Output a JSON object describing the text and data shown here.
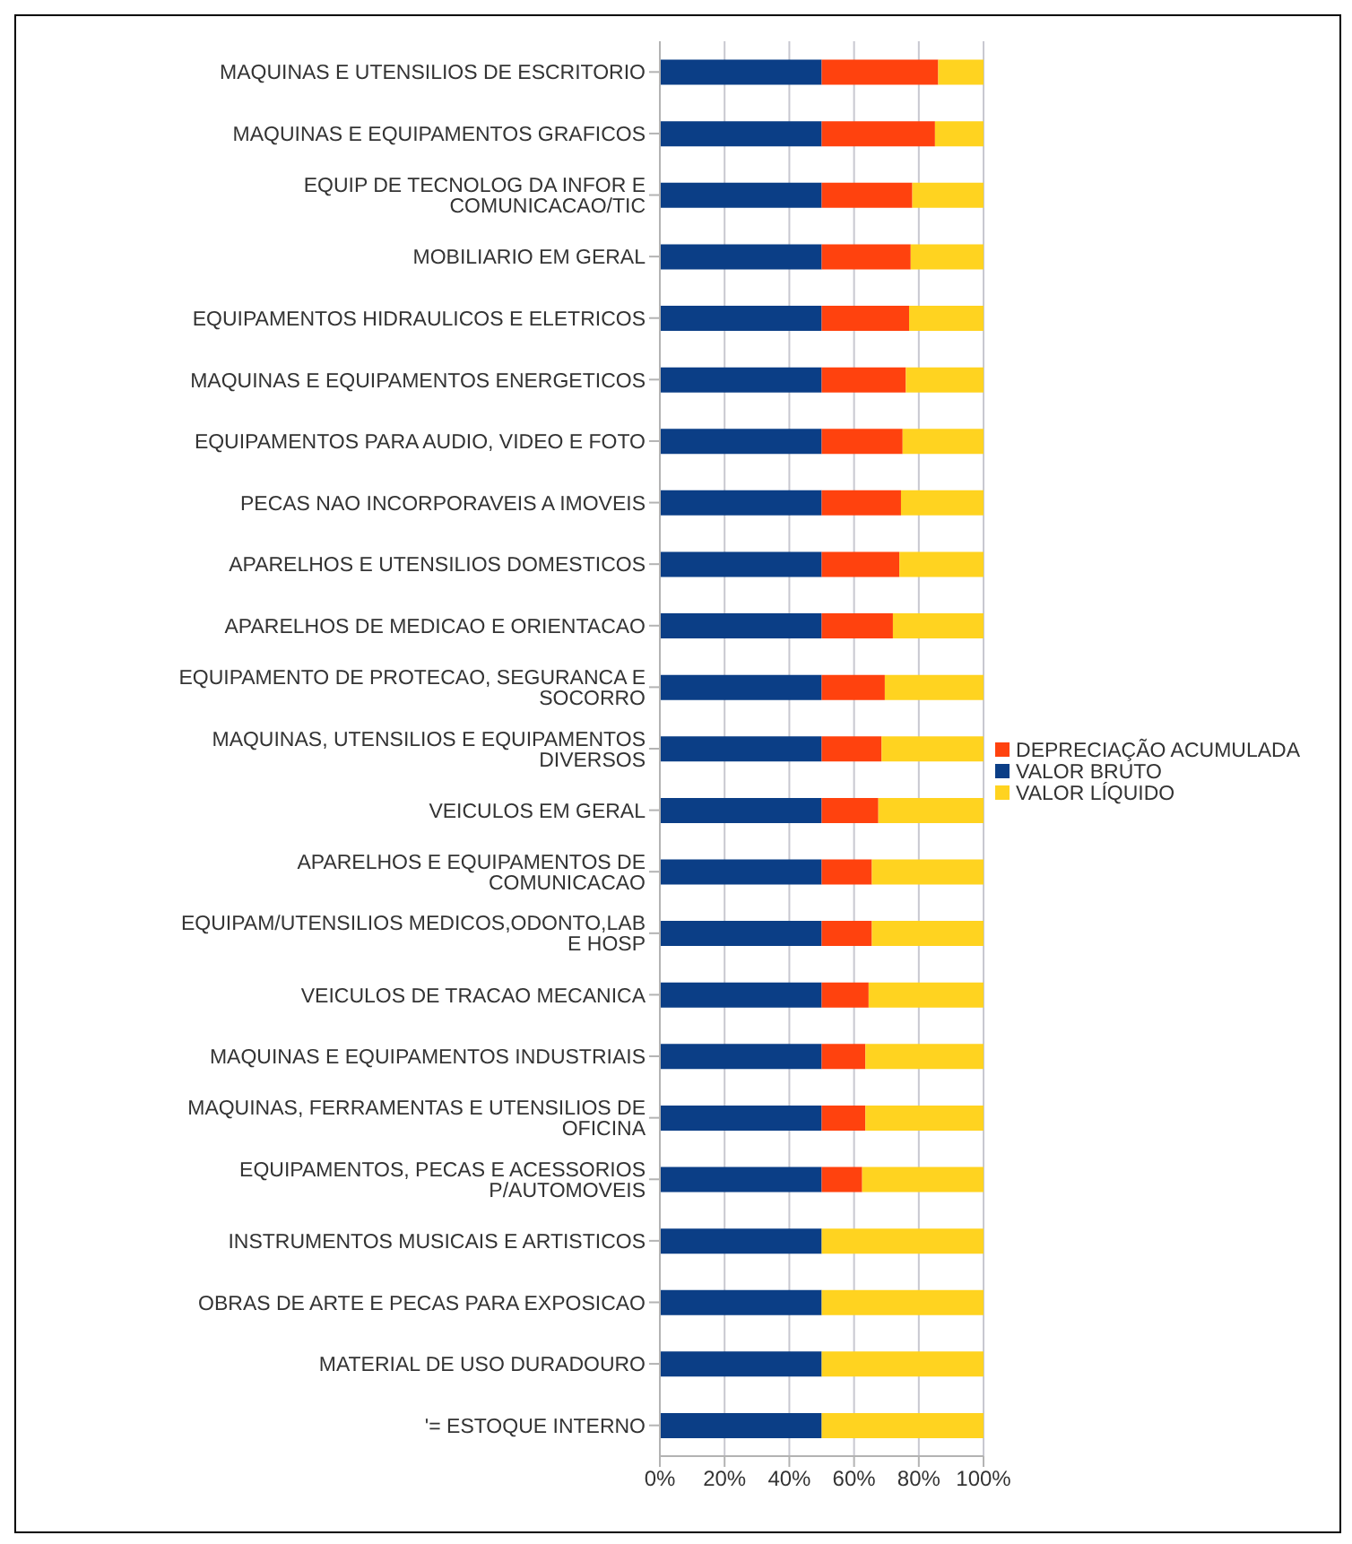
{
  "chart_data": {
    "type": "bar",
    "orientation": "horizontal",
    "stacked": true,
    "categories": [
      "MAQUINAS E UTENSILIOS DE ESCRITORIO",
      "MAQUINAS E EQUIPAMENTOS GRAFICOS",
      "EQUIP DE TECNOLOG DA INFOR E COMUNICACAO/TIC",
      "MOBILIARIO EM GERAL",
      "EQUIPAMENTOS HIDRAULICOS E ELETRICOS",
      "MAQUINAS E EQUIPAMENTOS ENERGETICOS",
      "EQUIPAMENTOS PARA AUDIO, VIDEO E FOTO",
      "PECAS NAO INCORPORAVEIS A IMOVEIS",
      "APARELHOS E UTENSILIOS DOMESTICOS",
      "APARELHOS DE MEDICAO E ORIENTACAO",
      "EQUIPAMENTO DE PROTECAO, SEGURANCA E SOCORRO",
      "MAQUINAS, UTENSILIOS E EQUIPAMENTOS  DIVERSOS",
      "VEICULOS EM GERAL",
      "APARELHOS E EQUIPAMENTOS DE COMUNICACAO",
      "EQUIPAM/UTENSILIOS MEDICOS,ODONTO,LAB E HOSP",
      "VEICULOS DE TRACAO MECANICA",
      "MAQUINAS E EQUIPAMENTOS INDUSTRIAIS",
      "MAQUINAS, FERRAMENTAS E UTENSILIOS DE OFICINA",
      "EQUIPAMENTOS, PECAS E ACESSORIOS P/AUTOMOVEIS",
      "INSTRUMENTOS MUSICAIS E ARTISTICOS",
      "OBRAS DE ARTE E PECAS PARA EXPOSICAO",
      "MATERIAL DE USO DURADOURO",
      "'= ESTOQUE INTERNO"
    ],
    "series": [
      {
        "name": "VALOR BRUTO",
        "color": "#0b3e86",
        "values": [
          50,
          50,
          50,
          50,
          50,
          50,
          50,
          50,
          50,
          50,
          50,
          50,
          50,
          50,
          50,
          50,
          50,
          50,
          50,
          50,
          50,
          50,
          50
        ]
      },
      {
        "name": "DEPRECIAÇÃO ACUMULADA",
        "color": "#ff420e",
        "values": [
          36,
          35,
          28,
          27.5,
          27,
          26,
          25,
          24.5,
          24,
          22,
          19.5,
          18.5,
          17.5,
          15.5,
          15.5,
          14.5,
          13.5,
          13.5,
          12.5,
          0,
          0,
          0,
          0
        ]
      },
      {
        "name": "VALOR LÍQUIDO",
        "color": "#ffd320",
        "values": [
          14,
          15,
          22,
          22.5,
          23,
          24,
          25,
          25.5,
          26,
          28,
          30.5,
          31.5,
          32.5,
          34.5,
          34.5,
          35.5,
          36.5,
          36.5,
          37.5,
          50,
          50,
          50,
          50
        ]
      }
    ],
    "xlim": [
      0,
      100
    ],
    "xticks": [
      {
        "value": 0,
        "label": "0%"
      },
      {
        "value": 20,
        "label": "20%"
      },
      {
        "value": 40,
        "label": "40%"
      },
      {
        "value": 60,
        "label": "60%"
      },
      {
        "value": 80,
        "label": "80%"
      },
      {
        "value": 100,
        "label": "100%"
      }
    ],
    "grid": "x",
    "legend": "right"
  }
}
